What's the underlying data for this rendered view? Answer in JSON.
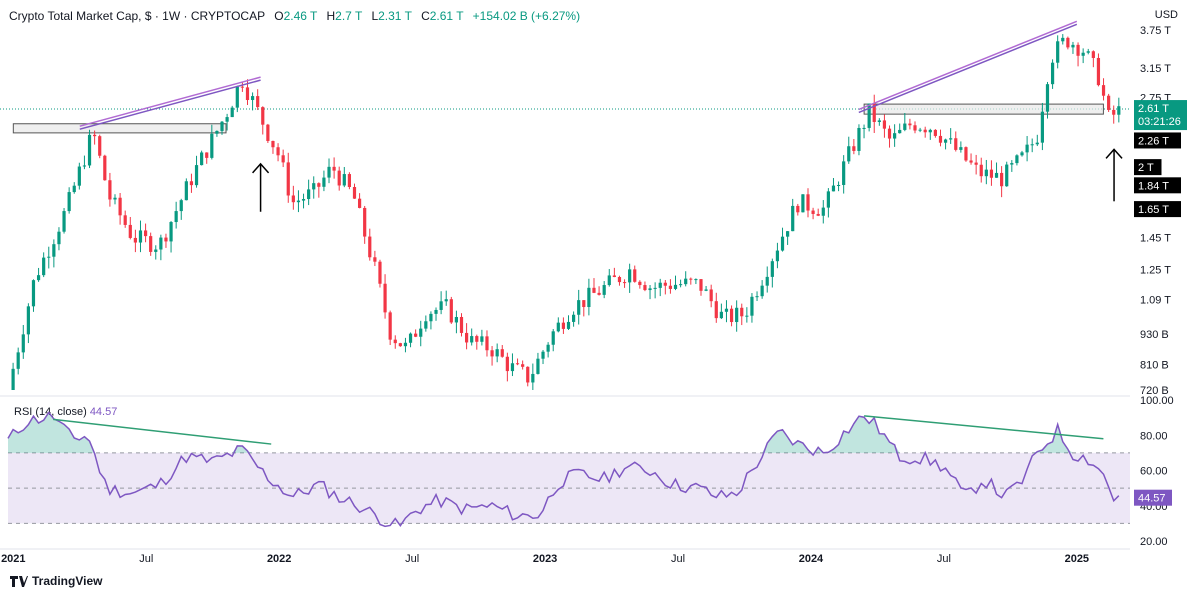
{
  "header": {
    "symbol": "Crypto Total Market Cap, $ · 1W · CRYPTOCAP",
    "o_label": "O",
    "o_value": "2.46 T",
    "h_label": "H",
    "h_value": "2.7 T",
    "l_label": "L",
    "l_value": "2.31 T",
    "c_label": "C",
    "c_value": "2.61 T",
    "change": "+154.02 B (+6.27%)"
  },
  "currency": "USD",
  "rsi_header": {
    "label": "RSI (14, close)",
    "value": "44.57"
  },
  "brand": "TradingView",
  "colors": {
    "up": "#089981",
    "down": "#f23645",
    "rsi_line": "#7e57c2",
    "rsi_fill": "#ede7f6",
    "trend": "#2f9e74",
    "channel": "#b16bd3"
  },
  "chart_data": [
    {
      "type": "candlestick",
      "title": "Crypto Total Market Cap, $ · 1W · CRYPTOCAP",
      "y_scale": "log",
      "ylim": [
        "720 B",
        "3.75 T"
      ],
      "y_ticks": [
        "3.75 T",
        "3.15 T",
        "2.75 T",
        "2.26 T",
        "1.85 T",
        "1.45 T",
        "1.25 T",
        "1.09 T",
        "930 B",
        "810 B",
        "720 B"
      ],
      "price_labels": [
        {
          "text": "2.61 T",
          "sub": "03:21:26",
          "value": 2.61,
          "style": "current"
        },
        {
          "text": "2.26 T",
          "value": 2.26,
          "style": "black"
        },
        {
          "text": "2 T",
          "value": 2.0,
          "style": "black"
        },
        {
          "text": "1.84 T",
          "value": 1.84,
          "style": "black"
        },
        {
          "text": "1.65 T",
          "value": 1.65,
          "style": "black"
        }
      ],
      "x_labels": [
        "2021",
        "Jul",
        "2022",
        "Jul",
        "2023",
        "Jul",
        "2024",
        "Jul",
        "2025"
      ],
      "trend_series": [
        {
          "points": [
            [
              2021.25,
              2.38
            ],
            [
              2021.93,
              2.98
            ]
          ]
        },
        {
          "points": [
            [
              2024.18,
              2.57
            ],
            [
              2025.0,
              3.85
            ]
          ]
        }
      ],
      "zones": [
        {
          "x": [
            2021.0,
            2021.8
          ],
          "y": [
            2.34,
            2.44
          ]
        },
        {
          "x": [
            2024.2,
            2025.1
          ],
          "y": [
            2.55,
            2.67
          ]
        }
      ],
      "arrows": [
        {
          "x": 2021.93,
          "from": 1.63,
          "to": 2.03
        },
        {
          "x": 2025.14,
          "from": 1.71,
          "to": 2.17
        }
      ],
      "anchors": [
        [
          2020.98,
          0.72
        ],
        [
          2021.08,
          1.2
        ],
        [
          2021.2,
          1.65
        ],
        [
          2021.3,
          2.35
        ],
        [
          2021.36,
          1.75
        ],
        [
          2021.45,
          1.45
        ],
        [
          2021.55,
          1.4
        ],
        [
          2021.68,
          1.95
        ],
        [
          2021.8,
          2.55
        ],
        [
          2021.86,
          3.0
        ],
        [
          2021.94,
          2.45
        ],
        [
          2022.0,
          2.1
        ],
        [
          2022.05,
          1.7
        ],
        [
          2022.13,
          1.78
        ],
        [
          2022.2,
          2.0
        ],
        [
          2022.28,
          1.75
        ],
        [
          2022.36,
          1.25
        ],
        [
          2022.42,
          0.93
        ],
        [
          2022.48,
          0.87
        ],
        [
          2022.55,
          1.03
        ],
        [
          2022.63,
          1.05
        ],
        [
          2022.72,
          0.9
        ],
        [
          2022.8,
          0.87
        ],
        [
          2022.87,
          0.8
        ],
        [
          2022.94,
          0.76
        ],
        [
          2023.02,
          0.92
        ],
        [
          2023.1,
          1.05
        ],
        [
          2023.2,
          1.13
        ],
        [
          2023.32,
          1.25
        ],
        [
          2023.4,
          1.15
        ],
        [
          2023.47,
          1.17
        ],
        [
          2023.58,
          1.17
        ],
        [
          2023.67,
          1.0
        ],
        [
          2023.75,
          1.02
        ],
        [
          2023.84,
          1.28
        ],
        [
          2023.95,
          1.7
        ],
        [
          2024.05,
          1.65
        ],
        [
          2024.14,
          2.1
        ],
        [
          2024.22,
          2.58
        ],
        [
          2024.3,
          2.25
        ],
        [
          2024.38,
          2.45
        ],
        [
          2024.46,
          2.4
        ],
        [
          2024.55,
          2.15
        ],
        [
          2024.63,
          1.95
        ],
        [
          2024.72,
          1.9
        ],
        [
          2024.8,
          2.1
        ],
        [
          2024.85,
          2.3
        ],
        [
          2024.9,
          3.3
        ],
        [
          2024.96,
          3.6
        ],
        [
          2025.02,
          3.45
        ],
        [
          2025.08,
          3.05
        ],
        [
          2025.12,
          2.5
        ],
        [
          2025.17,
          2.61
        ]
      ]
    },
    {
      "type": "line",
      "title": "RSI (14, close)",
      "ylim": [
        20,
        100
      ],
      "y_ticks": [
        "100.00",
        "80.00",
        "60.00",
        "40.00",
        "20.00"
      ],
      "bands": [
        70,
        50,
        30
      ],
      "current_value": "44.57",
      "trend_series": [
        {
          "points": [
            [
              2021.15,
              89
            ],
            [
              2021.97,
              75
            ]
          ]
        },
        {
          "points": [
            [
              2024.2,
              91
            ],
            [
              2025.1,
              78
            ]
          ]
        }
      ],
      "anchors": [
        [
          2020.98,
          77
        ],
        [
          2021.05,
          88
        ],
        [
          2021.15,
          91
        ],
        [
          2021.22,
          78
        ],
        [
          2021.28,
          80
        ],
        [
          2021.35,
          50
        ],
        [
          2021.45,
          47
        ],
        [
          2021.55,
          52
        ],
        [
          2021.65,
          68
        ],
        [
          2021.75,
          65
        ],
        [
          2021.86,
          72
        ],
        [
          2021.95,
          57
        ],
        [
          2022.05,
          45
        ],
        [
          2022.15,
          52
        ],
        [
          2022.22,
          45
        ],
        [
          2022.3,
          40
        ],
        [
          2022.38,
          33
        ],
        [
          2022.45,
          28
        ],
        [
          2022.52,
          38
        ],
        [
          2022.6,
          43
        ],
        [
          2022.7,
          38
        ],
        [
          2022.8,
          40
        ],
        [
          2022.9,
          34
        ],
        [
          2022.98,
          35
        ],
        [
          2023.05,
          53
        ],
        [
          2023.12,
          58
        ],
        [
          2023.22,
          55
        ],
        [
          2023.3,
          62
        ],
        [
          2023.4,
          60
        ],
        [
          2023.48,
          52
        ],
        [
          2023.58,
          50
        ],
        [
          2023.65,
          45
        ],
        [
          2023.72,
          47
        ],
        [
          2023.8,
          65
        ],
        [
          2023.88,
          82
        ],
        [
          2023.95,
          75
        ],
        [
          2024.05,
          70
        ],
        [
          2024.15,
          85
        ],
        [
          2024.2,
          91
        ],
        [
          2024.25,
          85
        ],
        [
          2024.33,
          68
        ],
        [
          2024.42,
          67
        ],
        [
          2024.5,
          62
        ],
        [
          2024.58,
          45
        ],
        [
          2024.65,
          55
        ],
        [
          2024.73,
          45
        ],
        [
          2024.8,
          55
        ],
        [
          2024.85,
          70
        ],
        [
          2024.93,
          83
        ],
        [
          2024.98,
          70
        ],
        [
          2025.05,
          66
        ],
        [
          2025.1,
          58
        ],
        [
          2025.14,
          44
        ],
        [
          2025.17,
          45
        ]
      ]
    }
  ]
}
